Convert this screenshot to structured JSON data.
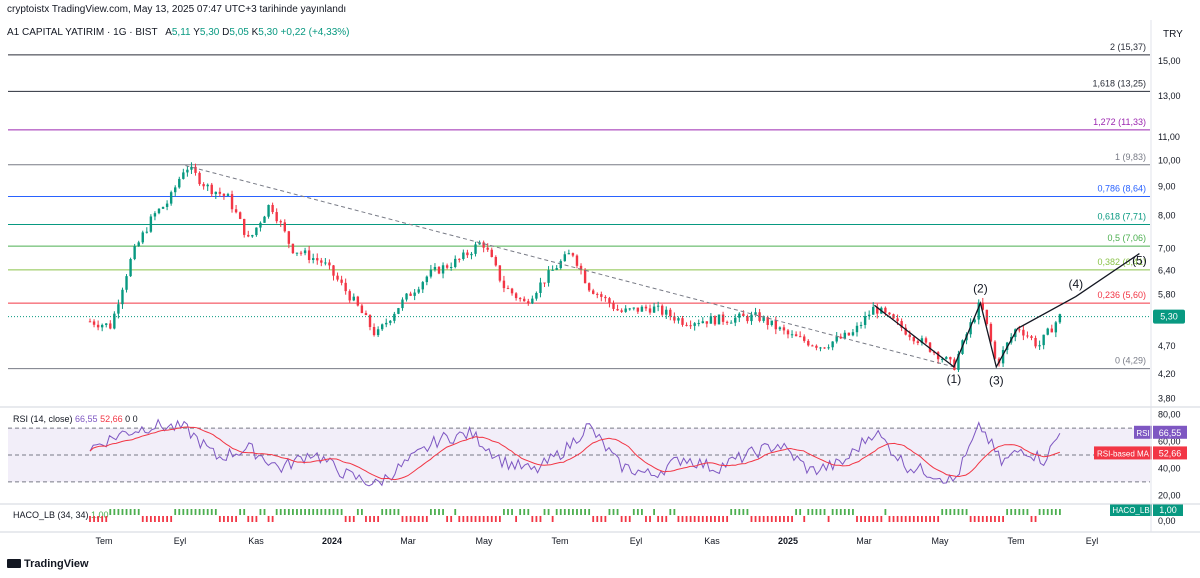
{
  "header": {
    "publisher": "cryptoistx TradingView.com, May 13, 2025 07:47 UTC+3 tarihinde yayınlandı",
    "symbol": "A1 CAPITAL YATIRIM · 1G · BIST",
    "ohlc": [
      {
        "k": "A",
        "v": "5,11"
      },
      {
        "k": "Y",
        "v": "5,30"
      },
      {
        "k": "D",
        "v": "5,05"
      },
      {
        "k": "K",
        "v": "5,30"
      }
    ],
    "change": "+0,22 (+4,33%)",
    "currency": "TRY"
  },
  "footer": {
    "brand": "TradingView"
  },
  "chart_data": [
    {
      "type": "candlestick",
      "title": "A1 CAPITAL YATIRIM · 1G · BIST",
      "log_scale": true,
      "y_ticks": [
        "15,00",
        "13,00",
        "11,00",
        "10,00",
        "9,00",
        "8,00",
        "7,00",
        "6,40",
        "5,80",
        "4,70",
        "4,20",
        "3,80"
      ],
      "x_ticks": [
        "Tem",
        "Eyl",
        "Kas",
        "2024",
        "Mar",
        "May",
        "Tem",
        "Eyl",
        "Kas",
        "2025",
        "Mar",
        "May",
        "Tem",
        "Eyl"
      ],
      "last_price": "5,30",
      "fib_levels": [
        {
          "label": "2 (15,37)",
          "value": 15.37,
          "color": "#2a2e39"
        },
        {
          "label": "1,618 (13,25)",
          "value": 13.25,
          "color": "#2a2e39"
        },
        {
          "label": "1,272 (11,33)",
          "value": 11.33,
          "color": "#9c27b0"
        },
        {
          "label": "1 (9,83)",
          "value": 9.83,
          "color": "#787b86"
        },
        {
          "label": "0,786 (8,64)",
          "value": 8.64,
          "color": "#2962ff"
        },
        {
          "label": "0,618 (7,71)",
          "value": 7.71,
          "color": "#089981"
        },
        {
          "label": "0,5 (7,06)",
          "value": 7.06,
          "color": "#4caf50"
        },
        {
          "label": "0,382 (6,41)",
          "value": 6.41,
          "color": "#8bc34a"
        },
        {
          "label": "0,236 (5,60)",
          "value": 5.6,
          "color": "#f23645"
        },
        {
          "label": "0 (4,29)",
          "value": 4.29,
          "color": "#787b86"
        }
      ],
      "wave_labels": [
        "(1)",
        "(2)",
        "(3)",
        "(4)",
        "(5)"
      ],
      "series_anchors": [
        {
          "x": 0.0,
          "y": 5.2
        },
        {
          "x": 0.02,
          "y": 5.1
        },
        {
          "x": 0.04,
          "y": 6.8
        },
        {
          "x": 0.06,
          "y": 8.0
        },
        {
          "x": 0.075,
          "y": 8.5
        },
        {
          "x": 0.09,
          "y": 9.8
        },
        {
          "x": 0.11,
          "y": 9.0
        },
        {
          "x": 0.13,
          "y": 8.6
        },
        {
          "x": 0.15,
          "y": 7.2
        },
        {
          "x": 0.17,
          "y": 8.4
        },
        {
          "x": 0.19,
          "y": 7.0
        },
        {
          "x": 0.22,
          "y": 6.6
        },
        {
          "x": 0.25,
          "y": 5.6
        },
        {
          "x": 0.27,
          "y": 4.9
        },
        {
          "x": 0.29,
          "y": 5.5
        },
        {
          "x": 0.32,
          "y": 6.3
        },
        {
          "x": 0.35,
          "y": 6.7
        },
        {
          "x": 0.37,
          "y": 7.2
        },
        {
          "x": 0.39,
          "y": 6.0
        },
        {
          "x": 0.41,
          "y": 5.6
        },
        {
          "x": 0.44,
          "y": 6.5
        },
        {
          "x": 0.455,
          "y": 6.9
        },
        {
          "x": 0.47,
          "y": 6.0
        },
        {
          "x": 0.5,
          "y": 5.4
        },
        {
          "x": 0.53,
          "y": 5.5
        },
        {
          "x": 0.56,
          "y": 5.2
        },
        {
          "x": 0.6,
          "y": 5.25
        },
        {
          "x": 0.63,
          "y": 5.3
        },
        {
          "x": 0.66,
          "y": 4.9
        },
        {
          "x": 0.69,
          "y": 4.7
        },
        {
          "x": 0.72,
          "y": 4.95
        },
        {
          "x": 0.74,
          "y": 5.5
        },
        {
          "x": 0.77,
          "y": 5.0
        },
        {
          "x": 0.8,
          "y": 4.55
        },
        {
          "x": 0.815,
          "y": 4.32
        },
        {
          "x": 0.84,
          "y": 5.6
        },
        {
          "x": 0.855,
          "y": 4.35
        },
        {
          "x": 0.875,
          "y": 5.1
        },
        {
          "x": 0.895,
          "y": 4.7
        },
        {
          "x": 0.915,
          "y": 5.3
        }
      ]
    },
    {
      "type": "line",
      "title": "RSI (14, close)",
      "values_label": [
        "66,55",
        "52,66"
      ],
      "extra": [
        "0",
        "0"
      ],
      "y_ticks": [
        "80,00",
        "60,00",
        "40,00",
        "20,00"
      ],
      "series": [
        {
          "name": "RSI",
          "last": "66,55",
          "color": "#7e57c2"
        },
        {
          "name": "RSI-based MA",
          "last": "52,66",
          "color": "#f23645"
        }
      ],
      "bands": [
        70,
        50,
        30
      ],
      "series_anchors": [
        {
          "x": 0.0,
          "y": 55
        },
        {
          "x": 0.03,
          "y": 66
        },
        {
          "x": 0.06,
          "y": 72
        },
        {
          "x": 0.09,
          "y": 70
        },
        {
          "x": 0.12,
          "y": 48
        },
        {
          "x": 0.15,
          "y": 55
        },
        {
          "x": 0.18,
          "y": 40
        },
        {
          "x": 0.21,
          "y": 52
        },
        {
          "x": 0.24,
          "y": 36
        },
        {
          "x": 0.27,
          "y": 28
        },
        {
          "x": 0.3,
          "y": 45
        },
        {
          "x": 0.33,
          "y": 62
        },
        {
          "x": 0.36,
          "y": 66
        },
        {
          "x": 0.39,
          "y": 45
        },
        {
          "x": 0.42,
          "y": 38
        },
        {
          "x": 0.45,
          "y": 55
        },
        {
          "x": 0.47,
          "y": 72
        },
        {
          "x": 0.5,
          "y": 42
        },
        {
          "x": 0.53,
          "y": 35
        },
        {
          "x": 0.56,
          "y": 48
        },
        {
          "x": 0.59,
          "y": 40
        },
        {
          "x": 0.62,
          "y": 50
        },
        {
          "x": 0.65,
          "y": 58
        },
        {
          "x": 0.68,
          "y": 38
        },
        {
          "x": 0.71,
          "y": 44
        },
        {
          "x": 0.74,
          "y": 68
        },
        {
          "x": 0.77,
          "y": 42
        },
        {
          "x": 0.8,
          "y": 35
        },
        {
          "x": 0.815,
          "y": 30
        },
        {
          "x": 0.84,
          "y": 72
        },
        {
          "x": 0.86,
          "y": 44
        },
        {
          "x": 0.88,
          "y": 55
        },
        {
          "x": 0.9,
          "y": 46
        },
        {
          "x": 0.915,
          "y": 66
        }
      ]
    },
    {
      "type": "bar",
      "title": "HACO_LB (34, 34)",
      "value": "1,00",
      "y_ticks": [
        "1,00",
        "0,00"
      ],
      "series": [
        {
          "name": "HACO_LB",
          "last": "1,00"
        }
      ]
    }
  ]
}
